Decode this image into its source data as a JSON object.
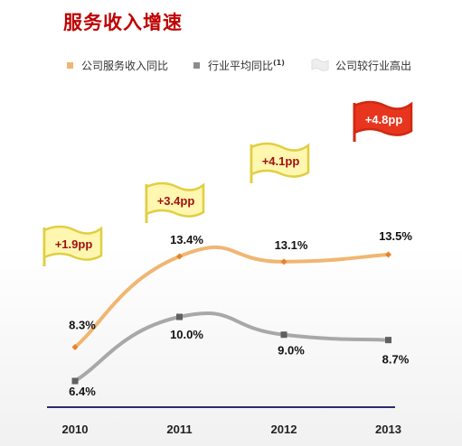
{
  "page": {
    "title": "服务收入增速"
  },
  "legend": [
    {
      "label": "公司服务收入同比",
      "color": "#f0b672",
      "icon": "square-marker"
    },
    {
      "label": "行业平均同比",
      "superscript": "(1)",
      "color": "#8c8c8c",
      "icon": "square-marker"
    },
    {
      "label": "公司较行业高出",
      "color": "#eeeeee",
      "icon": "flag-icon"
    }
  ],
  "chart_data": {
    "type": "line",
    "categories": [
      "2010",
      "2011",
      "2012",
      "2013"
    ],
    "series": [
      {
        "name": "公司服务收入同比",
        "values": [
          8.3,
          13.4,
          13.1,
          13.5
        ],
        "labels": [
          "8.3%",
          "13.4%",
          "13.1%",
          "13.5%"
        ],
        "color": "#f0b672",
        "marker_color": "#e8822a",
        "marker": "diamond"
      },
      {
        "name": "行业平均同比",
        "values": [
          6.4,
          10.0,
          9.0,
          8.7
        ],
        "labels": [
          "6.4%",
          "10.0%",
          "9.0%",
          "8.7%"
        ],
        "color": "#a8a8a8",
        "marker_color": "#606060",
        "marker": "square"
      }
    ],
    "gaps": [
      "+1.9pp",
      "+3.4pp",
      "+4.1pp",
      "+4.8pp"
    ],
    "gap_flag_colors": [
      "#fff6b0",
      "#fff6b0",
      "#fff6b0",
      "#e8361e"
    ],
    "gap_text_colors": [
      "#a01010",
      "#a01010",
      "#a01010",
      "#ffffff"
    ],
    "ylim": [
      5,
      15
    ],
    "axis_color": "#2b2b6b",
    "grid": false
  }
}
